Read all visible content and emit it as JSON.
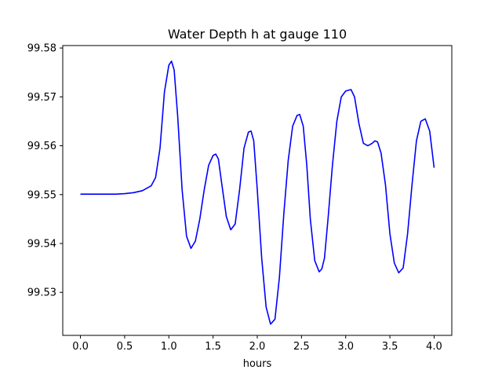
{
  "chart_data": {
    "type": "line",
    "title": "Water Depth h at gauge 110",
    "xlabel": "hours",
    "ylabel": "",
    "xlim": [
      -0.2,
      4.2
    ],
    "ylim": [
      99.5212,
      99.5805
    ],
    "xticks": [
      "0.0",
      "0.5",
      "1.0",
      "1.5",
      "2.0",
      "2.5",
      "3.0",
      "3.5",
      "4.0"
    ],
    "yticks": [
      "99.53",
      "99.54",
      "99.55",
      "99.56",
      "99.57",
      "99.58"
    ],
    "grid": false,
    "legend": "none",
    "series": [
      {
        "color": "#0000ff",
        "x": [
          0.0,
          0.2,
          0.4,
          0.5,
          0.6,
          0.7,
          0.8,
          0.85,
          0.9,
          0.95,
          1.0,
          1.03,
          1.06,
          1.1,
          1.15,
          1.2,
          1.25,
          1.3,
          1.35,
          1.4,
          1.45,
          1.5,
          1.53,
          1.56,
          1.6,
          1.65,
          1.7,
          1.75,
          1.8,
          1.85,
          1.9,
          1.93,
          1.96,
          2.0,
          2.05,
          2.1,
          2.15,
          2.2,
          2.25,
          2.3,
          2.35,
          2.4,
          2.45,
          2.48,
          2.52,
          2.56,
          2.6,
          2.65,
          2.7,
          2.73,
          2.76,
          2.8,
          2.85,
          2.9,
          2.95,
          3.0,
          3.06,
          3.1,
          3.15,
          3.2,
          3.25,
          3.3,
          3.33,
          3.36,
          3.4,
          3.45,
          3.5,
          3.55,
          3.6,
          3.65,
          3.7,
          3.75,
          3.8,
          3.85,
          3.9,
          3.95,
          4.0
        ],
        "y": [
          99.5501,
          99.5501,
          99.5501,
          99.5502,
          99.5504,
          99.5508,
          99.5518,
          99.5535,
          99.5595,
          99.571,
          99.5765,
          99.5773,
          99.5755,
          99.566,
          99.551,
          99.5415,
          99.539,
          99.5405,
          99.545,
          99.551,
          99.556,
          99.558,
          99.5583,
          99.5573,
          99.552,
          99.5455,
          99.5428,
          99.544,
          99.551,
          99.5595,
          99.5628,
          99.563,
          99.561,
          99.551,
          99.537,
          99.527,
          99.5235,
          99.5245,
          99.533,
          99.546,
          99.557,
          99.564,
          99.5662,
          99.5664,
          99.564,
          99.556,
          99.545,
          99.5365,
          99.5342,
          99.5348,
          99.537,
          99.545,
          99.556,
          99.565,
          99.57,
          99.5712,
          99.5715,
          99.57,
          99.5645,
          99.5605,
          99.56,
          99.5605,
          99.561,
          99.5608,
          99.5585,
          99.552,
          99.542,
          99.536,
          99.534,
          99.535,
          99.542,
          99.552,
          99.561,
          99.565,
          99.5655,
          99.563,
          99.5555
        ]
      }
    ]
  }
}
